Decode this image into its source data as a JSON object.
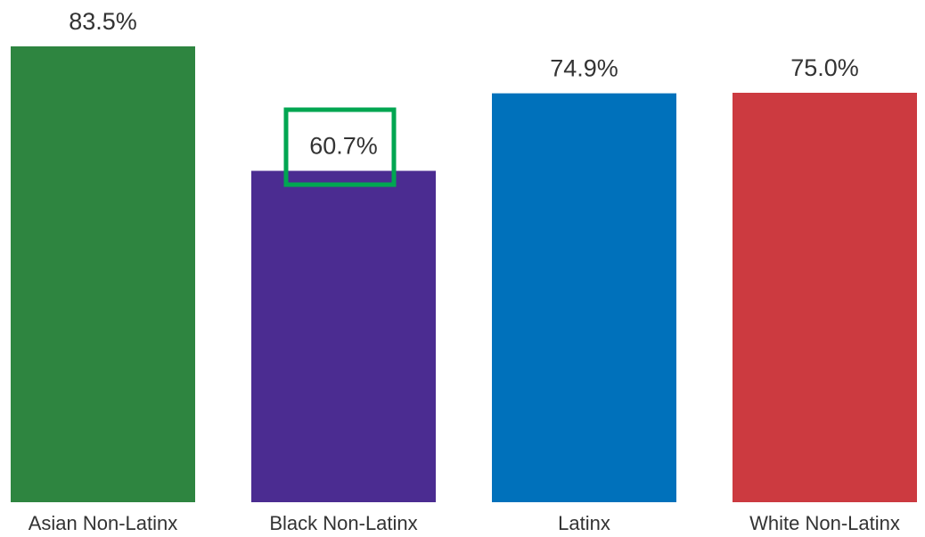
{
  "chart_data": {
    "type": "bar",
    "categories": [
      "Asian Non-Latinx",
      "Black Non-Latinx",
      "Latinx",
      "White Non-Latinx"
    ],
    "values": [
      83.5,
      60.7,
      74.9,
      75.0
    ],
    "value_labels": [
      "83.5%",
      "60.7%",
      "74.9%",
      "75.0%"
    ],
    "colors": [
      "#2e8540",
      "#4b2c91",
      "#0071bb",
      "#cc3a40"
    ]
  }
}
